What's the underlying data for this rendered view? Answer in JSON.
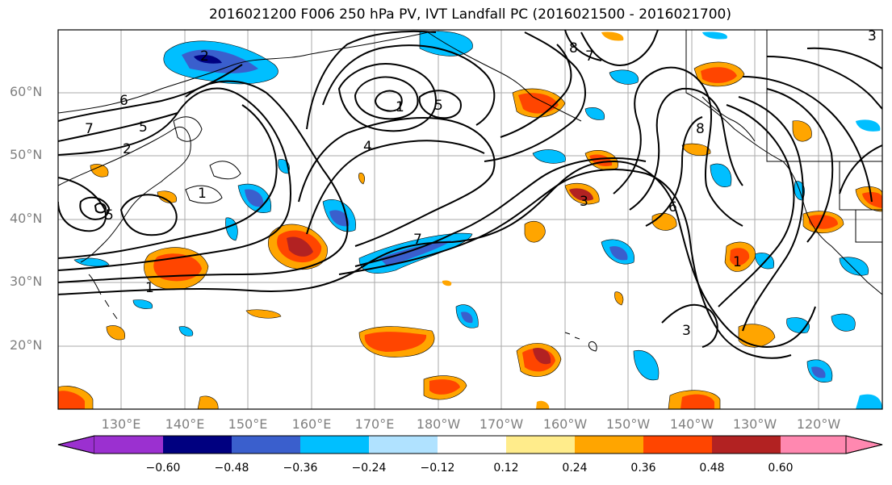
{
  "title": "2016021200 F006 250 hPa PV, IVT Landfall PC (2016021500 - 2016021700)",
  "lat_labels": [
    "60°N",
    "50°N",
    "40°N",
    "30°N",
    "20°N"
  ],
  "lon_labels": [
    "130°E",
    "140°E",
    "150°E",
    "160°E",
    "170°E",
    "180°W",
    "170°W",
    "160°W",
    "150°W",
    "140°W",
    "130°W",
    "120°W"
  ],
  "contour_labels": [
    "6",
    "7",
    "5",
    "2",
    "1",
    "4",
    "3",
    "8"
  ],
  "colorbar": {
    "ticks": [
      "−0.60",
      "−0.48",
      "−0.36",
      "−0.24",
      "−0.12",
      "0.12",
      "0.24",
      "0.36",
      "0.48",
      "0.60"
    ],
    "colors": [
      "#9b30d0",
      "#000080",
      "#3a5fcd",
      "#00bfff",
      "#b0e2ff",
      "#ffffff",
      "#ffec8b",
      "#ffa500",
      "#ff4500",
      "#b22222",
      "#ff88b0"
    ]
  }
}
